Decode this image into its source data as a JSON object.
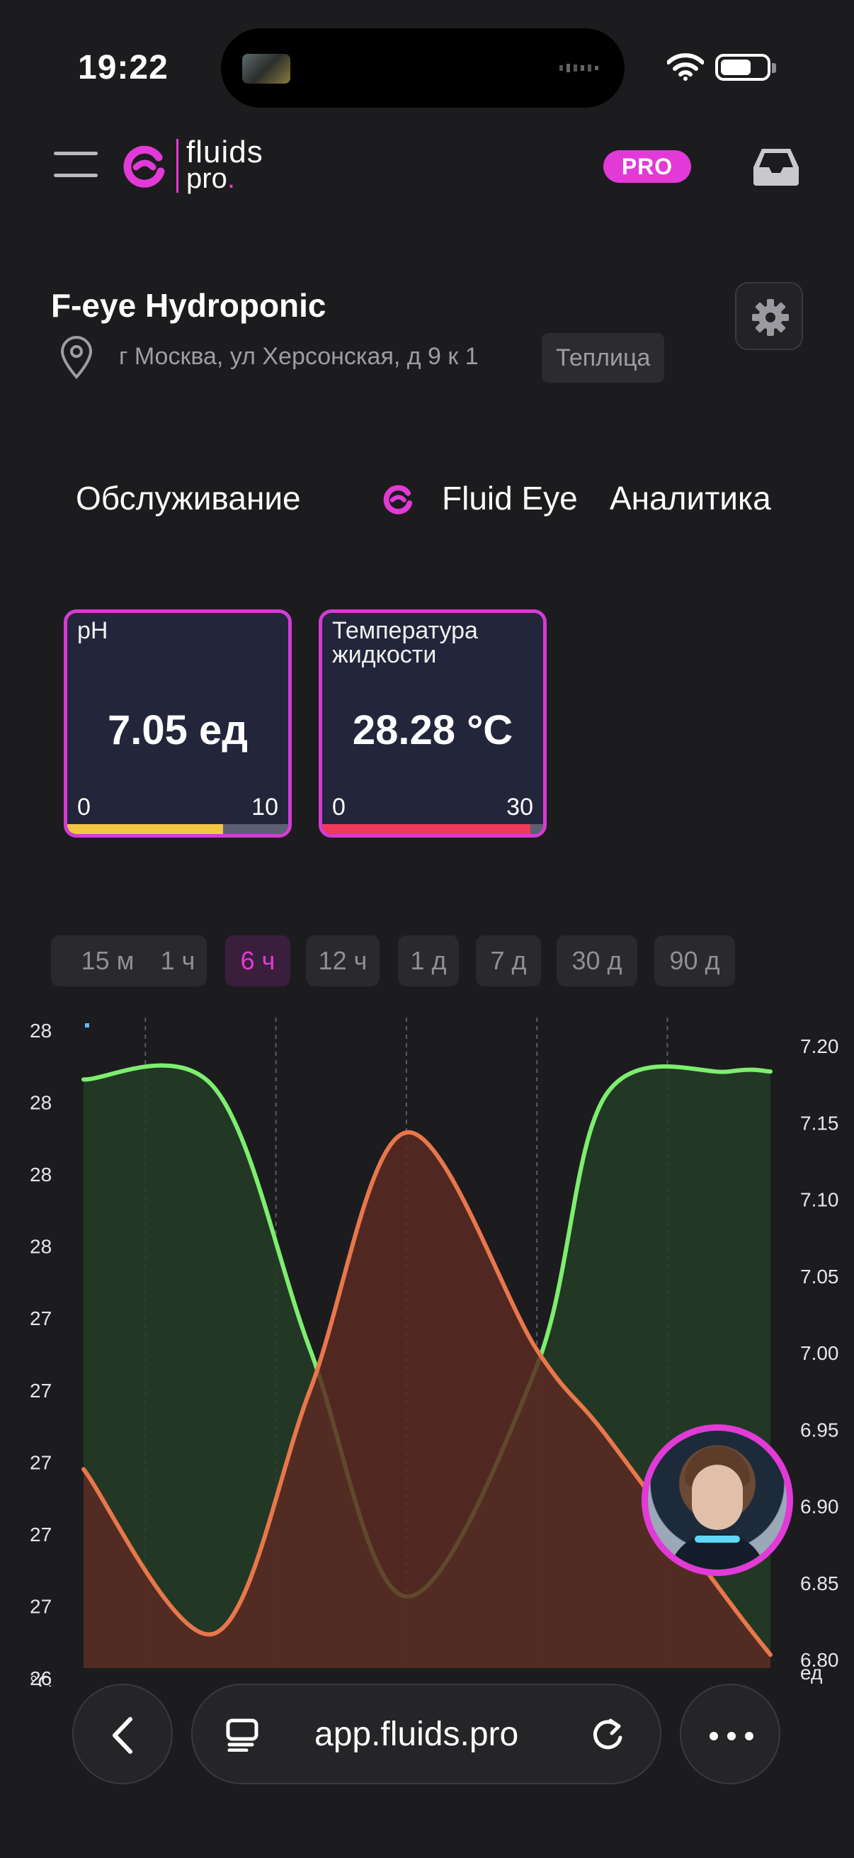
{
  "status_bar": {
    "time": "19:22"
  },
  "header": {
    "logo_name": "fluids",
    "logo_sub": "pro",
    "logo_dot": ".",
    "pro_badge": "PRO"
  },
  "device": {
    "title": "F-eye Hydroponic",
    "address": "г Москва, ул Херсонская, д 9 к 1",
    "tag": "Теплица"
  },
  "tabs": [
    {
      "label": "Обслуживание"
    },
    {
      "label": "Fluid Eye"
    },
    {
      "label": "Аналитика"
    }
  ],
  "sensors": [
    {
      "label": "pH",
      "value": "7.05 ед",
      "min": "0",
      "max": "10",
      "fraction": 0.705,
      "bar_color": "#f2c744"
    },
    {
      "label": "Температура жидкости",
      "value": "28.28 °C",
      "min": "0",
      "max": "30",
      "fraction": 0.943,
      "bar_color": "#f03a5a"
    }
  ],
  "time_ranges": [
    {
      "label": "15 м",
      "active": false
    },
    {
      "label": "1 ч",
      "active": false
    },
    {
      "label": "6 ч",
      "active": true
    },
    {
      "label": "12 ч",
      "active": false
    },
    {
      "label": "1 д",
      "active": false
    },
    {
      "label": "7 д",
      "active": false
    },
    {
      "label": "30 д",
      "active": false
    },
    {
      "label": "90 д",
      "active": false
    }
  ],
  "chart_data": {
    "type": "area",
    "x_ticks": [
      "",
      "",
      "",
      "",
      ""
    ],
    "y_left": {
      "unit": "°C",
      "tick_labels": [
        "28",
        "28",
        "28",
        "28",
        "27",
        "27",
        "27",
        "27",
        "27",
        "26"
      ],
      "range": [
        26.0,
        28.4
      ]
    },
    "y_right": {
      "unit": "ед",
      "tick_labels": [
        "7.20",
        "7.15",
        "7.10",
        "7.05",
        "7.00",
        "6.95",
        "6.90",
        "6.85",
        "6.80"
      ],
      "range": [
        6.8,
        7.2
      ]
    },
    "grid_vertical": true,
    "series": [
      {
        "axis": "right",
        "color": "#7dee6e",
        "fill": "#233d27",
        "x": [
          0,
          0.19,
          0.33,
          0.47,
          0.66,
          0.76,
          0.94,
          1.0
        ],
        "values": [
          7.17,
          7.165,
          7.0,
          6.845,
          6.99,
          7.16,
          7.175,
          7.175
        ]
      },
      {
        "axis": "left",
        "color": "#e8774c",
        "fill": "#5a2a22",
        "x": [
          0,
          0.19,
          0.33,
          0.47,
          0.66,
          0.76,
          0.94,
          1.0
        ],
        "values": [
          26.75,
          26.13,
          27.05,
          28.02,
          27.2,
          26.88,
          26.25,
          26.05
        ]
      }
    ]
  },
  "browser": {
    "url": "app.fluids.pro"
  },
  "colors": {
    "accent": "#e23ad6",
    "background": "#1c1c1e",
    "card": "#23253a"
  },
  "icons": {
    "menu": "hamburger-icon",
    "inbox": "inbox-icon",
    "pin": "map-pin-icon",
    "settings": "gear-icon",
    "eye": "fluids-logo-icon",
    "back": "chevron-left-icon",
    "tabs": "tabs-icon",
    "reload": "reload-icon",
    "more": "more-dots-icon"
  }
}
